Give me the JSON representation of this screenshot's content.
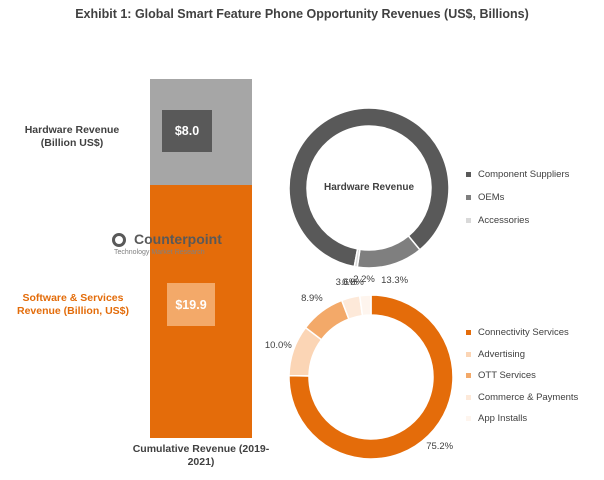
{
  "title": "Exhibit 1: Global Smart Feature Phone Opportunity Revenues (US$, Billions)",
  "watermark": {
    "name": "Counterpoint",
    "tagline": "Technology Market Research"
  },
  "colors": {
    "hardware_bar": "#a6a6a6",
    "software_bar": "#e46c0a",
    "hardware_value_box": "#595959",
    "software_value_box": "#f3a969",
    "software_label": "#e36c0a"
  },
  "chart_data": [
    {
      "type": "bar",
      "stacked": true,
      "xlabel": "Cumulative Revenue (2019-2021)",
      "categories": [
        "Cumulative Revenue (2019-2021)"
      ],
      "series": [
        {
          "name": "Software & Services Revenue (Billion, US$)",
          "values": [
            19.9
          ],
          "label": "$19.9",
          "color": "#e46c0a"
        },
        {
          "name": "Hardware Revenue (Billion US$)",
          "values": [
            8.0
          ],
          "label": "$8.0",
          "color": "#a6a6a6"
        }
      ]
    },
    {
      "type": "pie",
      "donut": true,
      "center_label": "Hardware Revenue",
      "legend_position": "right",
      "slices": [
        {
          "name": "Component Suppliers",
          "value": 86.1,
          "label": "",
          "color": "#ffffff"
        },
        {
          "name": "OEMs",
          "value": 13.3,
          "label": "13.3%",
          "color": "#ffffff"
        },
        {
          "name": "Accessories",
          "value": 0.6,
          "label": "0.6%",
          "color": "#ffffff"
        }
      ]
    },
    {
      "type": "pie",
      "donut": true,
      "center_label": "Software & Services Revenue",
      "legend_position": "right",
      "slices": [
        {
          "name": "Connectivity Services",
          "value": 75.2,
          "label": "75.2%",
          "color": "#e46c0a"
        },
        {
          "name": "Advertising",
          "value": 10.0,
          "label": "10.0%",
          "color": "#fbd5b5"
        },
        {
          "name": "OTT Services",
          "value": 8.9,
          "label": "8.9%",
          "color": "#f3a969"
        },
        {
          "name": "Commerce & Payments",
          "value": 3.6,
          "label": "3.6%",
          "color": "#fde9d9"
        },
        {
          "name": "App Installs",
          "value": 2.2,
          "label": "2.2%",
          "color": "#fef5ee"
        }
      ]
    }
  ]
}
